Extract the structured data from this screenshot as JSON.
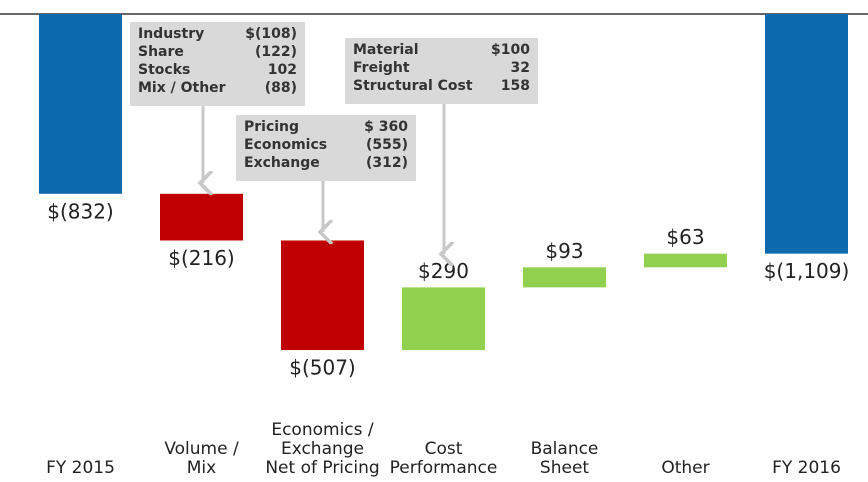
{
  "chart_data": {
    "type": "waterfall",
    "categories": [
      [
        "FY 2015"
      ],
      [
        "Volume /",
        "Mix"
      ],
      [
        "Economics /",
        "Exchange",
        "Net of Pricing"
      ],
      [
        "Cost",
        "Performance"
      ],
      [
        "Balance",
        "Sheet"
      ],
      [
        "Other"
      ],
      [
        "FY 2016"
      ]
    ],
    "values": [
      -832,
      -216,
      -507,
      290,
      93,
      63,
      -1109
    ],
    "value_labels": [
      "$(832)",
      "$(216)",
      "$(507)",
      "$290",
      "$93",
      "$63",
      "$(1,109)"
    ],
    "measure": [
      "total",
      "relative",
      "relative",
      "relative",
      "relative",
      "relative",
      "total"
    ],
    "colors": [
      "#0b6aad",
      "#c00000",
      "#c00000",
      "#92d050",
      "#92d050",
      "#92d050",
      "#0b6aad"
    ],
    "ylim": [
      -1800,
      0
    ],
    "annotations": [
      {
        "rows": [
          [
            "Industry",
            "$(108)"
          ],
          [
            "Share",
            "(122)"
          ],
          [
            "Stocks",
            "102"
          ],
          [
            "Mix / Other",
            "(88)"
          ]
        ]
      },
      {
        "rows": [
          [
            "Pricing",
            "$ 360"
          ],
          [
            "Economics",
            "(555)"
          ],
          [
            "Exchange",
            "(312)"
          ]
        ]
      },
      {
        "rows": [
          [
            "Material",
            "$100"
          ],
          [
            "Freight",
            "32"
          ],
          [
            "Structural Cost",
            "158"
          ]
        ]
      }
    ]
  }
}
